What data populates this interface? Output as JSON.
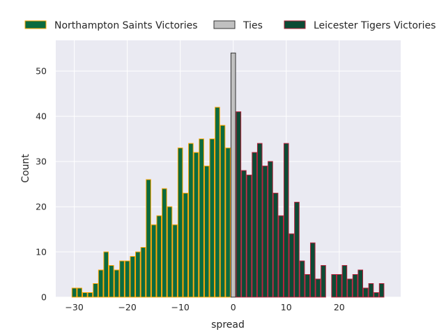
{
  "chart_data": {
    "type": "bar",
    "title": "",
    "xlabel": "spread",
    "ylabel": "Count",
    "xlim": [
      -33.5,
      31.6
    ],
    "ylim": [
      0,
      56.8
    ],
    "xticks": [
      -30,
      -20,
      -10,
      0,
      10,
      20
    ],
    "xtick_labels": [
      "−30",
      "−20",
      "−10",
      "0",
      "10",
      "20"
    ],
    "yticks": [
      0,
      10,
      20,
      30,
      40,
      50
    ],
    "ytick_labels": [
      "0",
      "10",
      "20",
      "30",
      "40",
      "50"
    ],
    "grid": true,
    "legend_placement": "top",
    "series": [
      {
        "name": "Northampton Saints Victories",
        "fill": "#0b6b3f",
        "edge": "#ffa500",
        "x": [
          -30,
          -29,
          -28,
          -27,
          -26,
          -25,
          -24,
          -23,
          -22,
          -21,
          -20,
          -19,
          -18,
          -17,
          -16,
          -15,
          -14,
          -13,
          -12,
          -11,
          -10,
          -9,
          -8,
          -7,
          -6,
          -5,
          -4,
          -3,
          -2,
          -1
        ],
        "values": [
          2,
          2,
          1,
          1,
          3,
          6,
          10,
          7,
          6,
          8,
          8,
          9,
          10,
          11,
          26,
          16,
          18,
          24,
          20,
          16,
          33,
          23,
          34,
          32,
          35,
          29,
          35,
          42,
          38,
          33
        ]
      },
      {
        "name": "Ties",
        "fill": "#c0c0c0",
        "edge": "#333333",
        "x": [
          0
        ],
        "values": [
          54
        ]
      },
      {
        "name": "Leicester Tigers Victories",
        "fill": "#0d4a35",
        "edge": "#b5203a",
        "x": [
          1,
          2,
          3,
          4,
          5,
          6,
          7,
          8,
          9,
          10,
          11,
          12,
          13,
          14,
          15,
          16,
          17,
          19,
          20,
          21,
          22,
          23,
          24,
          25,
          26,
          27,
          28
        ],
        "values": [
          41,
          28,
          27,
          32,
          34,
          29,
          30,
          23,
          18,
          34,
          14,
          21,
          8,
          5,
          12,
          4,
          7,
          5,
          5,
          7,
          4,
          5,
          6,
          2,
          3,
          1,
          3
        ]
      }
    ]
  }
}
